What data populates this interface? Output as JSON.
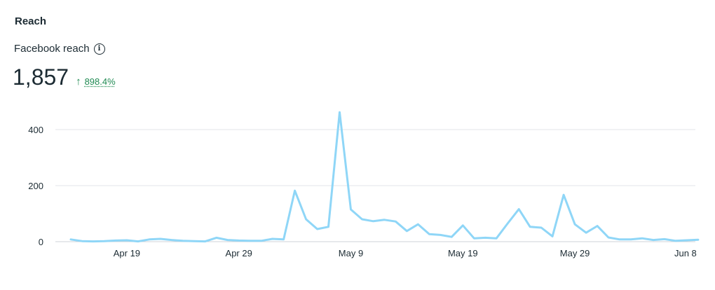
{
  "header": {
    "title": "Reach",
    "metric_label": "Facebook reach",
    "info_icon": "info-icon",
    "value": "1,857",
    "change_icon": "arrow-up-icon",
    "change_arrow": "↑",
    "change_pct": "898.4%",
    "change_color": "#1f8a52"
  },
  "chart_data": {
    "type": "line",
    "title": "",
    "xlabel": "",
    "ylabel": "",
    "line_color": "#8fd6f7",
    "grid": true,
    "ylim": [
      0,
      460
    ],
    "yticks": [
      0,
      200,
      400
    ],
    "ytick_labels": [
      "0",
      "200",
      "400"
    ],
    "xticks": [
      "2025-04-19",
      "2025-04-29",
      "2025-05-09",
      "2025-05-19",
      "2025-05-29",
      "2025-06-08"
    ],
    "xtick_labels": [
      "Apr 19",
      "Apr 29",
      "May 9",
      "May 19",
      "May 29",
      "Jun 8"
    ],
    "x": [
      "2025-04-14",
      "2025-04-15",
      "2025-04-16",
      "2025-04-17",
      "2025-04-18",
      "2025-04-19",
      "2025-04-20",
      "2025-04-21",
      "2025-04-22",
      "2025-04-23",
      "2025-04-24",
      "2025-04-25",
      "2025-04-26",
      "2025-04-27",
      "2025-04-28",
      "2025-04-29",
      "2025-04-30",
      "2025-05-01",
      "2025-05-02",
      "2025-05-03",
      "2025-05-04",
      "2025-05-05",
      "2025-05-06",
      "2025-05-07",
      "2025-05-08",
      "2025-05-09",
      "2025-05-10",
      "2025-05-11",
      "2025-05-12",
      "2025-05-13",
      "2025-05-14",
      "2025-05-15",
      "2025-05-16",
      "2025-05-17",
      "2025-05-18",
      "2025-05-19",
      "2025-05-20",
      "2025-05-21",
      "2025-05-22",
      "2025-05-23",
      "2025-05-24",
      "2025-05-25",
      "2025-05-26",
      "2025-05-27",
      "2025-05-28",
      "2025-05-29",
      "2025-05-30",
      "2025-05-31",
      "2025-06-01",
      "2025-06-02",
      "2025-06-03",
      "2025-06-04",
      "2025-06-05",
      "2025-06-06",
      "2025-06-07",
      "2025-06-08",
      "2025-06-09"
    ],
    "series": [
      {
        "values": [
          8,
          2,
          1,
          2,
          4,
          5,
          1,
          8,
          10,
          6,
          3,
          2,
          1,
          14,
          6,
          4,
          3,
          3,
          10,
          8,
          182,
          80,
          45,
          53,
          462,
          115,
          80,
          73,
          78,
          72,
          38,
          62,
          27,
          24,
          17,
          58,
          12,
          14,
          12,
          65,
          116,
          53,
          50,
          19,
          167,
          62,
          32,
          56,
          15,
          8,
          8,
          12,
          6,
          9,
          3,
          5,
          7
        ]
      }
    ]
  }
}
